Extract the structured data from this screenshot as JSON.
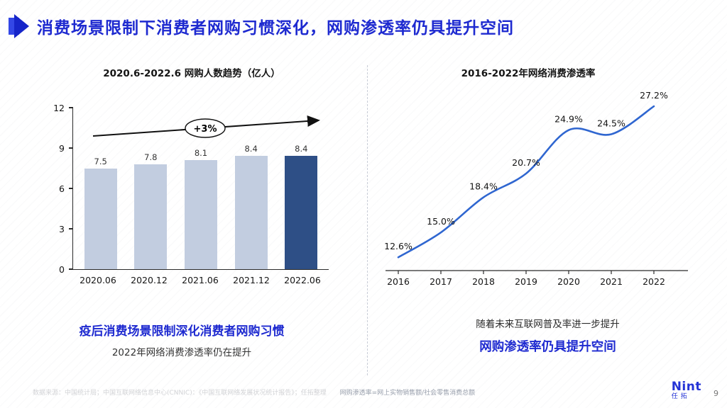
{
  "slide": {
    "title": "消费场景限制下消费者网购习惯深化，网购渗透率仍具提升空间",
    "page_number": "9",
    "logo": {
      "name": "Nint",
      "sub": "任拓"
    },
    "footer": {
      "source": "数据来源：中国统计局；中国互联网络信息中心(CNNIC)：《中国互联网络发展状况统计报告》；任拓整理",
      "note": "网购渗透率=网上实物销售额/社会零售消费总额"
    }
  },
  "left": {
    "caption_primary": "疫后消费场景限制深化消费者网购习惯",
    "caption_secondary": "2022年网络消费渗透率仍在提升"
  },
  "right": {
    "caption_primary": "随着未来互联网普及率进一步提升",
    "caption_secondary": "网购渗透率仍具提升空间"
  },
  "chart_data": [
    {
      "type": "bar",
      "title": "2020.6-2022.6 网购人数趋势（亿人）",
      "categories": [
        "2020.06",
        "2020.12",
        "2021.06",
        "2021.12",
        "2022.06"
      ],
      "values": [
        7.5,
        7.8,
        8.1,
        8.4,
        8.4
      ],
      "xlabel": "",
      "ylabel": "",
      "ylim": [
        0,
        12
      ],
      "yticks": [
        0,
        3,
        6,
        9,
        12
      ],
      "grid": false,
      "legend": "none",
      "annotation": "+3%",
      "bar_color": "#c2cde0",
      "highlight_color": "#2e4f86",
      "highlight_index": 4
    },
    {
      "type": "line",
      "title": "2016-2022年网络消费渗透率",
      "categories": [
        "2016",
        "2017",
        "2018",
        "2019",
        "2020",
        "2021",
        "2022"
      ],
      "values": [
        12.6,
        15.0,
        18.4,
        20.7,
        24.9,
        24.5,
        27.2
      ],
      "labels": [
        "12.6%",
        "15.0%",
        "18.4%",
        "20.7%",
        "24.9%",
        "24.5%",
        "27.2%"
      ],
      "xlabel": "",
      "ylabel": "",
      "ylim": [
        12,
        28
      ],
      "grid": false,
      "legend": "none",
      "line_color": "#2f66d0"
    }
  ]
}
